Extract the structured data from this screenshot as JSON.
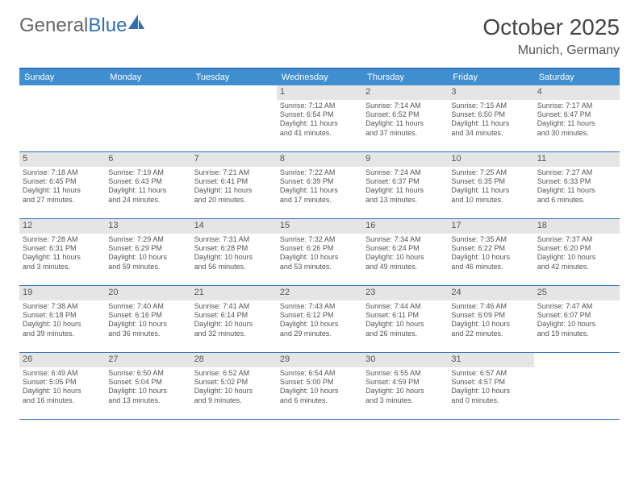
{
  "logo": {
    "text1": "General",
    "text2": "Blue"
  },
  "title": "October 2025",
  "location": "Munich, Germany",
  "colors": {
    "header_bg": "#3e8ed0",
    "header_text": "#ffffff",
    "rule": "#2e6fb5",
    "daynum_bg": "#e5e5e5",
    "body_text": "#555555",
    "logo_gray": "#666666",
    "logo_blue": "#2e6fb5",
    "page_bg": "#ffffff"
  },
  "typography": {
    "title_fontsize": 28,
    "location_fontsize": 16,
    "dayheader_fontsize": 11,
    "daynum_fontsize": 11,
    "cell_fontsize": 9
  },
  "day_headers": [
    "Sunday",
    "Monday",
    "Tuesday",
    "Wednesday",
    "Thursday",
    "Friday",
    "Saturday"
  ],
  "weeks": [
    [
      {
        "num": "",
        "sunrise": "",
        "sunset": "",
        "daylight1": "",
        "daylight2": ""
      },
      {
        "num": "",
        "sunrise": "",
        "sunset": "",
        "daylight1": "",
        "daylight2": ""
      },
      {
        "num": "",
        "sunrise": "",
        "sunset": "",
        "daylight1": "",
        "daylight2": ""
      },
      {
        "num": "1",
        "sunrise": "Sunrise: 7:12 AM",
        "sunset": "Sunset: 6:54 PM",
        "daylight1": "Daylight: 11 hours",
        "daylight2": "and 41 minutes."
      },
      {
        "num": "2",
        "sunrise": "Sunrise: 7:14 AM",
        "sunset": "Sunset: 6:52 PM",
        "daylight1": "Daylight: 11 hours",
        "daylight2": "and 37 minutes."
      },
      {
        "num": "3",
        "sunrise": "Sunrise: 7:15 AM",
        "sunset": "Sunset: 6:50 PM",
        "daylight1": "Daylight: 11 hours",
        "daylight2": "and 34 minutes."
      },
      {
        "num": "4",
        "sunrise": "Sunrise: 7:17 AM",
        "sunset": "Sunset: 6:47 PM",
        "daylight1": "Daylight: 11 hours",
        "daylight2": "and 30 minutes."
      }
    ],
    [
      {
        "num": "5",
        "sunrise": "Sunrise: 7:18 AM",
        "sunset": "Sunset: 6:45 PM",
        "daylight1": "Daylight: 11 hours",
        "daylight2": "and 27 minutes."
      },
      {
        "num": "6",
        "sunrise": "Sunrise: 7:19 AM",
        "sunset": "Sunset: 6:43 PM",
        "daylight1": "Daylight: 11 hours",
        "daylight2": "and 24 minutes."
      },
      {
        "num": "7",
        "sunrise": "Sunrise: 7:21 AM",
        "sunset": "Sunset: 6:41 PM",
        "daylight1": "Daylight: 11 hours",
        "daylight2": "and 20 minutes."
      },
      {
        "num": "8",
        "sunrise": "Sunrise: 7:22 AM",
        "sunset": "Sunset: 6:39 PM",
        "daylight1": "Daylight: 11 hours",
        "daylight2": "and 17 minutes."
      },
      {
        "num": "9",
        "sunrise": "Sunrise: 7:24 AM",
        "sunset": "Sunset: 6:37 PM",
        "daylight1": "Daylight: 11 hours",
        "daylight2": "and 13 minutes."
      },
      {
        "num": "10",
        "sunrise": "Sunrise: 7:25 AM",
        "sunset": "Sunset: 6:35 PM",
        "daylight1": "Daylight: 11 hours",
        "daylight2": "and 10 minutes."
      },
      {
        "num": "11",
        "sunrise": "Sunrise: 7:27 AM",
        "sunset": "Sunset: 6:33 PM",
        "daylight1": "Daylight: 11 hours",
        "daylight2": "and 6 minutes."
      }
    ],
    [
      {
        "num": "12",
        "sunrise": "Sunrise: 7:28 AM",
        "sunset": "Sunset: 6:31 PM",
        "daylight1": "Daylight: 11 hours",
        "daylight2": "and 3 minutes."
      },
      {
        "num": "13",
        "sunrise": "Sunrise: 7:29 AM",
        "sunset": "Sunset: 6:29 PM",
        "daylight1": "Daylight: 10 hours",
        "daylight2": "and 59 minutes."
      },
      {
        "num": "14",
        "sunrise": "Sunrise: 7:31 AM",
        "sunset": "Sunset: 6:28 PM",
        "daylight1": "Daylight: 10 hours",
        "daylight2": "and 56 minutes."
      },
      {
        "num": "15",
        "sunrise": "Sunrise: 7:32 AM",
        "sunset": "Sunset: 6:26 PM",
        "daylight1": "Daylight: 10 hours",
        "daylight2": "and 53 minutes."
      },
      {
        "num": "16",
        "sunrise": "Sunrise: 7:34 AM",
        "sunset": "Sunset: 6:24 PM",
        "daylight1": "Daylight: 10 hours",
        "daylight2": "and 49 minutes."
      },
      {
        "num": "17",
        "sunrise": "Sunrise: 7:35 AM",
        "sunset": "Sunset: 6:22 PM",
        "daylight1": "Daylight: 10 hours",
        "daylight2": "and 46 minutes."
      },
      {
        "num": "18",
        "sunrise": "Sunrise: 7:37 AM",
        "sunset": "Sunset: 6:20 PM",
        "daylight1": "Daylight: 10 hours",
        "daylight2": "and 42 minutes."
      }
    ],
    [
      {
        "num": "19",
        "sunrise": "Sunrise: 7:38 AM",
        "sunset": "Sunset: 6:18 PM",
        "daylight1": "Daylight: 10 hours",
        "daylight2": "and 39 minutes."
      },
      {
        "num": "20",
        "sunrise": "Sunrise: 7:40 AM",
        "sunset": "Sunset: 6:16 PM",
        "daylight1": "Daylight: 10 hours",
        "daylight2": "and 36 minutes."
      },
      {
        "num": "21",
        "sunrise": "Sunrise: 7:41 AM",
        "sunset": "Sunset: 6:14 PM",
        "daylight1": "Daylight: 10 hours",
        "daylight2": "and 32 minutes."
      },
      {
        "num": "22",
        "sunrise": "Sunrise: 7:43 AM",
        "sunset": "Sunset: 6:12 PM",
        "daylight1": "Daylight: 10 hours",
        "daylight2": "and 29 minutes."
      },
      {
        "num": "23",
        "sunrise": "Sunrise: 7:44 AM",
        "sunset": "Sunset: 6:11 PM",
        "daylight1": "Daylight: 10 hours",
        "daylight2": "and 26 minutes."
      },
      {
        "num": "24",
        "sunrise": "Sunrise: 7:46 AM",
        "sunset": "Sunset: 6:09 PM",
        "daylight1": "Daylight: 10 hours",
        "daylight2": "and 22 minutes."
      },
      {
        "num": "25",
        "sunrise": "Sunrise: 7:47 AM",
        "sunset": "Sunset: 6:07 PM",
        "daylight1": "Daylight: 10 hours",
        "daylight2": "and 19 minutes."
      }
    ],
    [
      {
        "num": "26",
        "sunrise": "Sunrise: 6:49 AM",
        "sunset": "Sunset: 5:05 PM",
        "daylight1": "Daylight: 10 hours",
        "daylight2": "and 16 minutes."
      },
      {
        "num": "27",
        "sunrise": "Sunrise: 6:50 AM",
        "sunset": "Sunset: 5:04 PM",
        "daylight1": "Daylight: 10 hours",
        "daylight2": "and 13 minutes."
      },
      {
        "num": "28",
        "sunrise": "Sunrise: 6:52 AM",
        "sunset": "Sunset: 5:02 PM",
        "daylight1": "Daylight: 10 hours",
        "daylight2": "and 9 minutes."
      },
      {
        "num": "29",
        "sunrise": "Sunrise: 6:54 AM",
        "sunset": "Sunset: 5:00 PM",
        "daylight1": "Daylight: 10 hours",
        "daylight2": "and 6 minutes."
      },
      {
        "num": "30",
        "sunrise": "Sunrise: 6:55 AM",
        "sunset": "Sunset: 4:59 PM",
        "daylight1": "Daylight: 10 hours",
        "daylight2": "and 3 minutes."
      },
      {
        "num": "31",
        "sunrise": "Sunrise: 6:57 AM",
        "sunset": "Sunset: 4:57 PM",
        "daylight1": "Daylight: 10 hours",
        "daylight2": "and 0 minutes."
      },
      {
        "num": "",
        "sunrise": "",
        "sunset": "",
        "daylight1": "",
        "daylight2": ""
      }
    ]
  ]
}
